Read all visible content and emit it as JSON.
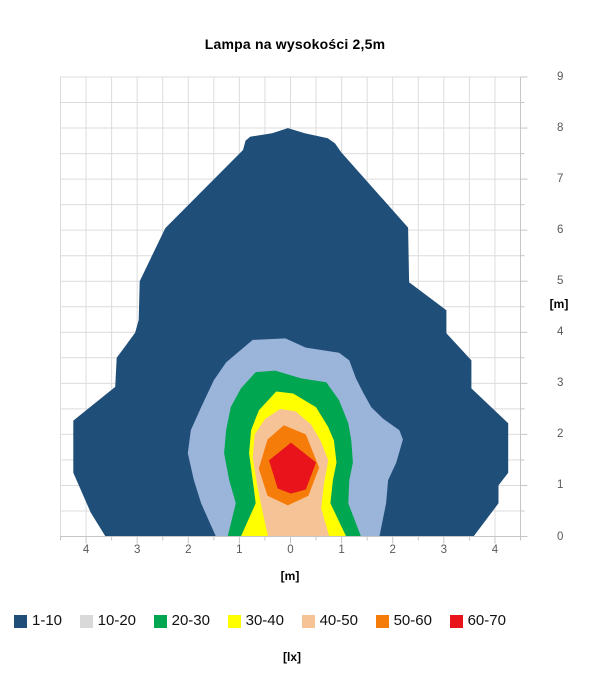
{
  "chart_data": {
    "type": "area",
    "subtype": "filled-contour-map",
    "title": "Lampa na wysokości 2,5m",
    "xlabel": "[m]",
    "ylabel": "[m]",
    "legend_unit": "[lx]",
    "xlim": [
      -4.5,
      4.5
    ],
    "ylim": [
      0,
      9
    ],
    "grid": "on",
    "grid_step": 0.5,
    "legend_position": "bottom",
    "x_ticks": [
      {
        "v": -4,
        "label": "4"
      },
      {
        "v": -3,
        "label": "3"
      },
      {
        "v": -2,
        "label": "2"
      },
      {
        "v": -1,
        "label": "1"
      },
      {
        "v": 0,
        "label": "0"
      },
      {
        "v": 1,
        "label": "1"
      },
      {
        "v": 2,
        "label": "2"
      },
      {
        "v": 3,
        "label": "3"
      },
      {
        "v": 4,
        "label": "4"
      }
    ],
    "y_ticks": [
      {
        "v": 0,
        "label": "0"
      },
      {
        "v": 1,
        "label": "1"
      },
      {
        "v": 2,
        "label": "2"
      },
      {
        "v": 3,
        "label": "3"
      },
      {
        "v": 4,
        "label": "4"
      },
      {
        "v": 5,
        "label": "5"
      },
      {
        "v": 6,
        "label": "6"
      },
      {
        "v": 7,
        "label": "7"
      },
      {
        "v": 8,
        "label": "8"
      },
      {
        "v": 9,
        "label": "9"
      }
    ],
    "levels": [
      {
        "range": "1-10",
        "fill": "#1F4E79",
        "swatch": "#1F4E79"
      },
      {
        "range": "10-20",
        "fill": "#9BB4D9",
        "swatch": "#D9D9D9"
      },
      {
        "range": "20-30",
        "fill": "#00A750",
        "swatch": "#00A750"
      },
      {
        "range": "30-40",
        "fill": "#FFFF00",
        "swatch": "#FFFF00"
      },
      {
        "range": "40-50",
        "fill": "#F6C396",
        "swatch": "#F6C396"
      },
      {
        "range": "50-60",
        "fill": "#F67C0A",
        "swatch": "#F67C0A"
      },
      {
        "range": "60-70",
        "fill": "#E8131B",
        "swatch": "#E8131B"
      }
    ],
    "regions": [
      {
        "level": "1-10",
        "points": [
          [
            -3.62,
            0
          ],
          [
            -3.91,
            0.47
          ],
          [
            -4.25,
            1.25
          ],
          [
            -4.25,
            2.27
          ],
          [
            -3.43,
            2.93
          ],
          [
            -3.4,
            3.5
          ],
          [
            -3.04,
            3.99
          ],
          [
            -2.97,
            4.24
          ],
          [
            -2.95,
            5.0
          ],
          [
            -2.45,
            6.04
          ],
          [
            -0.93,
            7.57
          ],
          [
            -0.88,
            7.75
          ],
          [
            -0.79,
            7.83
          ],
          [
            -0.36,
            7.9
          ],
          [
            -0.05,
            8.0
          ],
          [
            0.28,
            7.9
          ],
          [
            0.73,
            7.8
          ],
          [
            0.87,
            7.7
          ],
          [
            0.99,
            7.53
          ],
          [
            2.3,
            6.05
          ],
          [
            2.32,
            4.98
          ],
          [
            3.05,
            4.43
          ],
          [
            3.05,
            3.98
          ],
          [
            3.54,
            3.45
          ],
          [
            3.54,
            2.9
          ],
          [
            4.26,
            2.22
          ],
          [
            4.26,
            1.25
          ],
          [
            4.07,
            1.0
          ],
          [
            4.07,
            0.65
          ],
          [
            3.58,
            0
          ]
        ]
      },
      {
        "level": "10-20",
        "points": [
          [
            -1.46,
            0
          ],
          [
            -1.75,
            0.65
          ],
          [
            -1.89,
            1.1
          ],
          [
            -2.01,
            1.63
          ],
          [
            -1.95,
            2.08
          ],
          [
            -1.75,
            2.53
          ],
          [
            -1.5,
            3.06
          ],
          [
            -1.26,
            3.41
          ],
          [
            -0.74,
            3.85
          ],
          [
            -0.1,
            3.88
          ],
          [
            0.3,
            3.7
          ],
          [
            0.95,
            3.6
          ],
          [
            1.15,
            3.45
          ],
          [
            1.28,
            3.1
          ],
          [
            1.42,
            2.82
          ],
          [
            1.58,
            2.53
          ],
          [
            1.81,
            2.31
          ],
          [
            2.13,
            2.08
          ],
          [
            2.2,
            1.9
          ],
          [
            2.07,
            1.45
          ],
          [
            1.91,
            1.1
          ],
          [
            1.87,
            0.65
          ],
          [
            1.74,
            0
          ]
        ]
      },
      {
        "level": "20-30",
        "points": [
          [
            -1.23,
            0
          ],
          [
            -1.07,
            0.65
          ],
          [
            -1.2,
            1.1
          ],
          [
            -1.3,
            1.63
          ],
          [
            -1.26,
            2.08
          ],
          [
            -1.17,
            2.53
          ],
          [
            -0.97,
            2.9
          ],
          [
            -0.68,
            3.22
          ],
          [
            -0.3,
            3.25
          ],
          [
            0.2,
            3.1
          ],
          [
            0.7,
            3.02
          ],
          [
            0.95,
            2.67
          ],
          [
            1.13,
            2.22
          ],
          [
            1.19,
            1.88
          ],
          [
            1.22,
            1.45
          ],
          [
            1.15,
            1.1
          ],
          [
            1.13,
            0.65
          ],
          [
            1.38,
            0
          ]
        ]
      },
      {
        "level": "30-40",
        "points": [
          [
            -0.97,
            0
          ],
          [
            -0.68,
            0.65
          ],
          [
            -0.74,
            1.1
          ],
          [
            -0.81,
            1.63
          ],
          [
            -0.77,
            2.08
          ],
          [
            -0.62,
            2.47
          ],
          [
            -0.28,
            2.84
          ],
          [
            0.05,
            2.8
          ],
          [
            0.5,
            2.53
          ],
          [
            0.74,
            2.14
          ],
          [
            0.85,
            1.88
          ],
          [
            0.9,
            1.45
          ],
          [
            0.83,
            1.1
          ],
          [
            0.78,
            0.65
          ],
          [
            1.09,
            0
          ]
        ]
      },
      {
        "level": "40-50",
        "points": [
          [
            -0.44,
            0
          ],
          [
            -0.55,
            0.5
          ],
          [
            -0.65,
            1.0
          ],
          [
            -0.74,
            1.55
          ],
          [
            -0.7,
            2.0
          ],
          [
            -0.5,
            2.3
          ],
          [
            -0.2,
            2.5
          ],
          [
            0.1,
            2.45
          ],
          [
            0.4,
            2.2
          ],
          [
            0.6,
            1.85
          ],
          [
            0.74,
            1.49
          ],
          [
            0.65,
            1.0
          ],
          [
            0.6,
            0.55
          ],
          [
            0.76,
            0
          ]
        ]
      },
      {
        "level": "50-60",
        "points": [
          [
            -0.13,
            2.18
          ],
          [
            0.3,
            2.0
          ],
          [
            0.56,
            1.35
          ],
          [
            0.35,
            0.8
          ],
          [
            -0.05,
            0.61
          ],
          [
            -0.45,
            0.8
          ],
          [
            -0.62,
            1.33
          ],
          [
            -0.45,
            1.9
          ]
        ]
      },
      {
        "level": "60-70",
        "points": [
          [
            0.01,
            1.84
          ],
          [
            0.5,
            1.45
          ],
          [
            0.3,
            0.92
          ],
          [
            0.01,
            0.84
          ],
          [
            -0.25,
            0.94
          ],
          [
            -0.42,
            1.49
          ]
        ]
      }
    ]
  }
}
